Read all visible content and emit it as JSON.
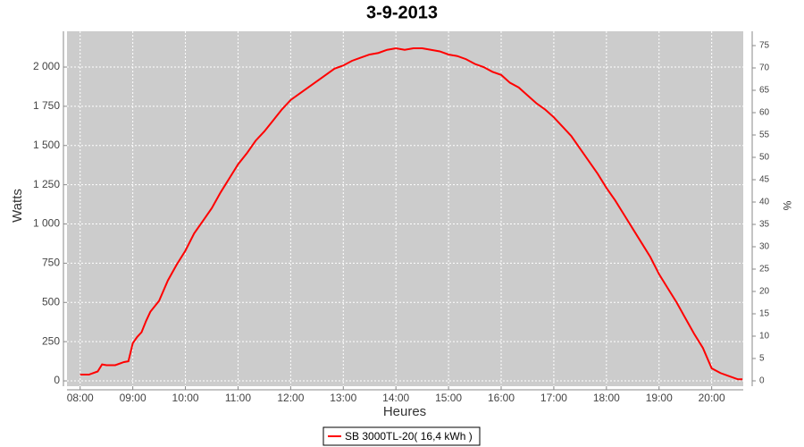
{
  "chart_data": {
    "type": "line",
    "title": "3-9-2013",
    "xlabel": "Heures",
    "ylabel": "Watts",
    "y2label": "%",
    "x": [
      "08:00",
      "08:10",
      "08:20",
      "08:25",
      "08:30",
      "08:40",
      "08:50",
      "08:55",
      "09:00",
      "09:05",
      "09:10",
      "09:15",
      "09:20",
      "09:30",
      "09:40",
      "09:50",
      "10:00",
      "10:10",
      "10:20",
      "10:30",
      "10:40",
      "10:50",
      "11:00",
      "11:10",
      "11:20",
      "11:30",
      "11:40",
      "11:50",
      "12:00",
      "12:10",
      "12:20",
      "12:30",
      "12:40",
      "12:50",
      "13:00",
      "13:10",
      "13:20",
      "13:30",
      "13:40",
      "13:50",
      "14:00",
      "14:10",
      "14:20",
      "14:30",
      "14:40",
      "14:50",
      "15:00",
      "15:10",
      "15:20",
      "15:30",
      "15:40",
      "15:50",
      "16:00",
      "16:10",
      "16:20",
      "16:30",
      "16:40",
      "16:50",
      "17:00",
      "17:10",
      "17:20",
      "17:30",
      "17:40",
      "17:50",
      "18:00",
      "18:10",
      "18:20",
      "18:30",
      "18:40",
      "18:50",
      "19:00",
      "19:10",
      "19:20",
      "19:30",
      "19:40",
      "19:50",
      "20:00",
      "20:10",
      "20:20",
      "20:30",
      "20:35"
    ],
    "series": [
      {
        "name": "SB 3000TL-20( 16,4 kWh )",
        "color": "#ff0000",
        "values": [
          40,
          40,
          60,
          105,
          100,
          100,
          120,
          125,
          240,
          280,
          310,
          380,
          440,
          510,
          640,
          740,
          830,
          940,
          1020,
          1100,
          1200,
          1290,
          1380,
          1450,
          1530,
          1590,
          1660,
          1730,
          1790,
          1830,
          1870,
          1910,
          1950,
          1990,
          2010,
          2040,
          2060,
          2080,
          2090,
          2110,
          2120,
          2110,
          2120,
          2120,
          2110,
          2100,
          2080,
          2070,
          2050,
          2020,
          2000,
          1970,
          1950,
          1900,
          1870,
          1820,
          1770,
          1730,
          1680,
          1620,
          1560,
          1480,
          1400,
          1320,
          1230,
          1150,
          1060,
          970,
          880,
          790,
          680,
          590,
          500,
          400,
          300,
          210,
          80,
          50,
          30,
          10,
          10
        ]
      }
    ],
    "xlim": [
      "07:45",
      "20:36"
    ],
    "xticks": [
      "08:00",
      "09:00",
      "10:00",
      "11:00",
      "12:00",
      "13:00",
      "14:00",
      "15:00",
      "16:00",
      "17:00",
      "18:00",
      "19:00",
      "20:00"
    ],
    "ylim": [
      -34,
      2228
    ],
    "yticks": [
      0,
      250,
      500,
      750,
      {
        "value": 1000,
        "label": "1 000"
      },
      {
        "value": 1250,
        "label": "1 250"
      },
      {
        "value": 1500,
        "label": "1 500"
      },
      {
        "value": 1750,
        "label": "1 750"
      },
      {
        "value": 2000,
        "label": "2 000"
      }
    ],
    "y2lim": [
      -1.2,
      78.2
    ],
    "y2ticks": [
      0,
      5,
      10,
      15,
      20,
      25,
      30,
      35,
      40,
      45,
      50,
      55,
      60,
      65,
      70,
      75
    ],
    "grid": true,
    "legend": "bottom",
    "plot_background": "#cccccc"
  }
}
